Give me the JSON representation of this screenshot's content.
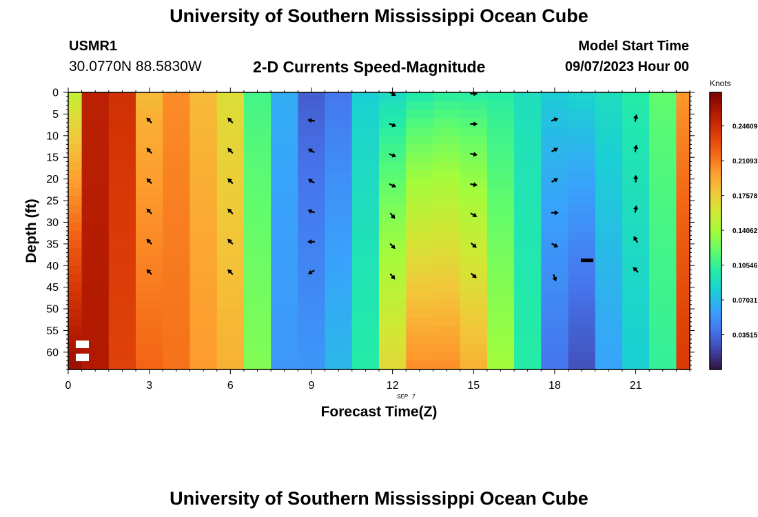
{
  "header": {
    "title": "University of Southern Mississippi Ocean Cube",
    "station_id": "USMR1",
    "coordinates": "30.0770N  88.5830W",
    "subtitle": "2-D Currents Speed-Magnitude",
    "model_start_label": "Model Start Time",
    "model_start_value": "09/07/2023 Hour 00",
    "footer_title": "University of Southern Mississippi Ocean Cube"
  },
  "chart_data": {
    "type": "heatmap",
    "title": "2-D Currents Speed-Magnitude",
    "xlabel": "Forecast Time(Z)",
    "ylabel": "Depth (ft)",
    "date_label": "SEP 7",
    "x_range": [
      0,
      23
    ],
    "y_range": [
      0,
      64
    ],
    "x_ticks": [
      0,
      3,
      6,
      9,
      12,
      15,
      18,
      21
    ],
    "x_tick_labels": [
      "0",
      "3",
      "6",
      "9",
      "12",
      "15",
      "18",
      "21"
    ],
    "y_ticks": [
      0,
      5,
      10,
      15,
      20,
      25,
      30,
      35,
      40,
      45,
      50,
      55,
      60
    ],
    "y_tick_labels": [
      "0",
      "5",
      "10",
      "15",
      "20",
      "25",
      "30",
      "35",
      "40",
      "45",
      "50",
      "55",
      "60"
    ],
    "colorbar": {
      "label": "Knots",
      "min": 0,
      "max": 0.28,
      "ticks": [
        0.24609,
        0.21093,
        0.17578,
        0.14062,
        0.10546,
        0.07031,
        0.03515
      ],
      "tick_labels": [
        "0.24609",
        "0.21093",
        "0.17578",
        "0.14062",
        "0.10546",
        "0.07031",
        "0.03515"
      ],
      "colors": [
        "#30123b",
        "#4145ab",
        "#4675ed",
        "#39a2fc",
        "#1bcfd4",
        "#24eca6",
        "#61fc6c",
        "#a4fc3b",
        "#d1e834",
        "#f3c63a",
        "#fe9b2d",
        "#f36315",
        "#d93806",
        "#b11901",
        "#7a0402"
      ]
    },
    "hours": [
      0,
      1,
      2,
      3,
      4,
      5,
      6,
      7,
      8,
      9,
      10,
      11,
      12,
      13,
      14,
      15,
      16,
      17,
      18,
      19,
      20,
      21,
      22,
      23
    ],
    "speed_top": [
      0.15,
      0.255,
      0.245,
      0.185,
      0.205,
      0.185,
      0.165,
      0.11,
      0.065,
      0.03,
      0.04,
      0.08,
      0.085,
      0.095,
      0.1,
      0.1,
      0.1,
      0.09,
      0.08,
      0.085,
      0.09,
      0.1,
      0.12,
      0.2
    ],
    "speed_bottom": [
      0.27,
      0.26,
      0.235,
      0.22,
      0.215,
      0.2,
      0.19,
      0.13,
      0.055,
      0.055,
      0.07,
      0.1,
      0.17,
      0.205,
      0.205,
      0.19,
      0.14,
      0.1,
      0.04,
      0.025,
      0.06,
      0.08,
      0.105,
      0.24
    ],
    "arrows": [
      {
        "hour": 3,
        "depth": 6.5,
        "dir": 315
      },
      {
        "hour": 3,
        "depth": 13.5,
        "dir": 315
      },
      {
        "hour": 3,
        "depth": 20.5,
        "dir": 315
      },
      {
        "hour": 3,
        "depth": 27.5,
        "dir": 315
      },
      {
        "hour": 3,
        "depth": 34.5,
        "dir": 315
      },
      {
        "hour": 3,
        "depth": 41.5,
        "dir": 315
      },
      {
        "hour": 6,
        "depth": 6.5,
        "dir": 315
      },
      {
        "hour": 6,
        "depth": 13.5,
        "dir": 315
      },
      {
        "hour": 6,
        "depth": 20.5,
        "dir": 315
      },
      {
        "hour": 6,
        "depth": 27.5,
        "dir": 315
      },
      {
        "hour": 6,
        "depth": 34.5,
        "dir": 315
      },
      {
        "hour": 6,
        "depth": 41.5,
        "dir": 315
      },
      {
        "hour": 9,
        "depth": 6.5,
        "dir": 280
      },
      {
        "hour": 9,
        "depth": 13.5,
        "dir": 300
      },
      {
        "hour": 9,
        "depth": 20.5,
        "dir": 300
      },
      {
        "hour": 9,
        "depth": 27.5,
        "dir": 290
      },
      {
        "hour": 9,
        "depth": 34.5,
        "dir": 270
      },
      {
        "hour": 9,
        "depth": 41.5,
        "dir": 240
      },
      {
        "hour": 12,
        "depth": 0.3,
        "dir": 120
      },
      {
        "hour": 12,
        "depth": 7.5,
        "dir": 110
      },
      {
        "hour": 12,
        "depth": 14.5,
        "dir": 110
      },
      {
        "hour": 12,
        "depth": 21.5,
        "dir": 115
      },
      {
        "hour": 12,
        "depth": 28.5,
        "dir": 140
      },
      {
        "hour": 12,
        "depth": 35.5,
        "dir": 135
      },
      {
        "hour": 12,
        "depth": 42.5,
        "dir": 140
      },
      {
        "hour": 15,
        "depth": 0.3,
        "dir": 90
      },
      {
        "hour": 15,
        "depth": 7.3,
        "dir": 90
      },
      {
        "hour": 15,
        "depth": 14.3,
        "dir": 100
      },
      {
        "hour": 15,
        "depth": 21.3,
        "dir": 100
      },
      {
        "hour": 15,
        "depth": 28.3,
        "dir": 120
      },
      {
        "hour": 15,
        "depth": 35.3,
        "dir": 130
      },
      {
        "hour": 15,
        "depth": 42.3,
        "dir": 130
      },
      {
        "hour": 18,
        "depth": 6.3,
        "dir": 70
      },
      {
        "hour": 18,
        "depth": 13.3,
        "dir": 60
      },
      {
        "hour": 18,
        "depth": 20.3,
        "dir": 60
      },
      {
        "hour": 18,
        "depth": 27.8,
        "dir": 90
      },
      {
        "hour": 18,
        "depth": 35.3,
        "dir": 120
      },
      {
        "hour": 18,
        "depth": 42.8,
        "dir": 160
      },
      {
        "hour": 21,
        "depth": 6.0,
        "dir": 10
      },
      {
        "hour": 21,
        "depth": 13.0,
        "dir": 10
      },
      {
        "hour": 21,
        "depth": 20.0,
        "dir": 0
      },
      {
        "hour": 21,
        "depth": 27.0,
        "dir": 10
      },
      {
        "hour": 21,
        "depth": 34.0,
        "dir": 330
      },
      {
        "hour": 21,
        "depth": 41.0,
        "dir": 315
      }
    ],
    "bar_marker": {
      "hour": 19.2,
      "depth": 38.8
    },
    "legend_arrows_hint": "bottom-left"
  }
}
